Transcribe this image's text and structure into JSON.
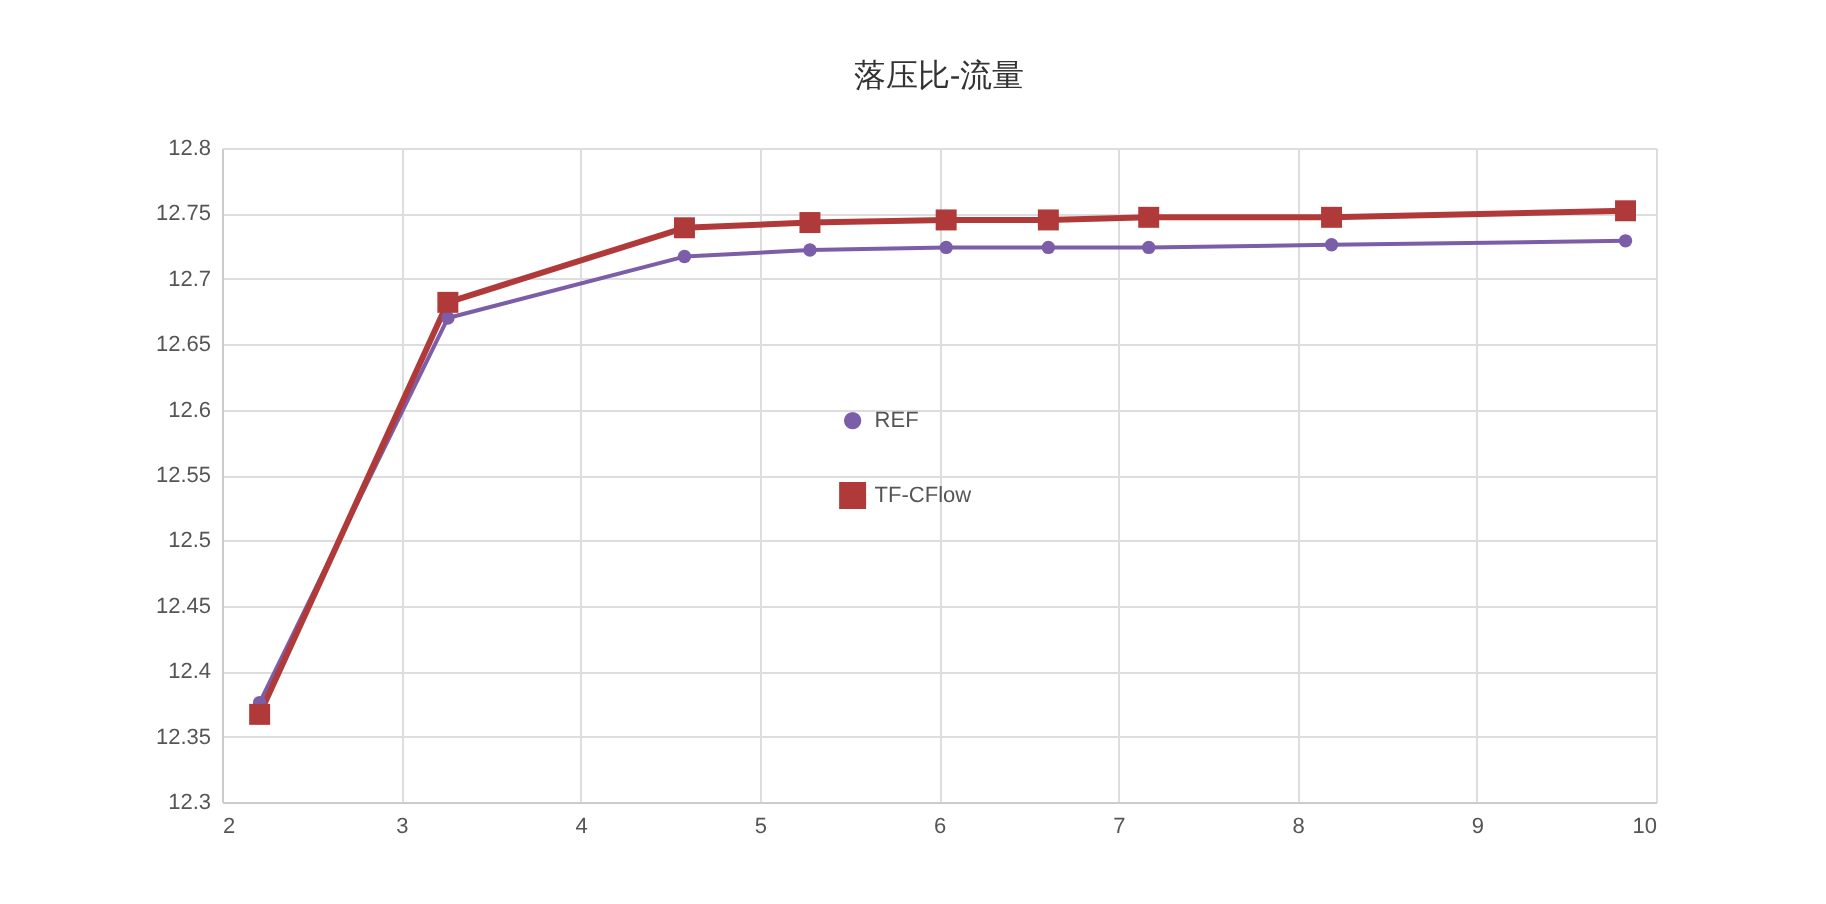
{
  "chart_data": {
    "type": "line",
    "title": "落压比-流量",
    "x": [
      2.21,
      3.26,
      4.58,
      5.28,
      6.04,
      6.61,
      7.17,
      8.19,
      9.83
    ],
    "series": [
      {
        "name": "REF",
        "color": "#7b5ea7",
        "marker": "circle",
        "values": [
          12.376,
          12.67,
          12.717,
          12.722,
          12.724,
          12.724,
          12.724,
          12.726,
          12.729
        ]
      },
      {
        "name": "TF-CFlow",
        "color": "#b03a3a",
        "marker": "square",
        "values": [
          12.367,
          12.682,
          12.739,
          12.743,
          12.745,
          12.745,
          12.747,
          12.747,
          12.752
        ]
      }
    ],
    "xlim": [
      2,
      10
    ],
    "xticks": [
      2,
      3,
      4,
      5,
      6,
      7,
      8,
      9,
      10
    ],
    "ylim": [
      12.3,
      12.8
    ],
    "yticks": [
      12.3,
      12.35,
      12.4,
      12.45,
      12.5,
      12.55,
      12.6,
      12.65,
      12.7,
      12.75,
      12.8
    ],
    "grid": true,
    "legend": "center",
    "line_style": "solid"
  }
}
